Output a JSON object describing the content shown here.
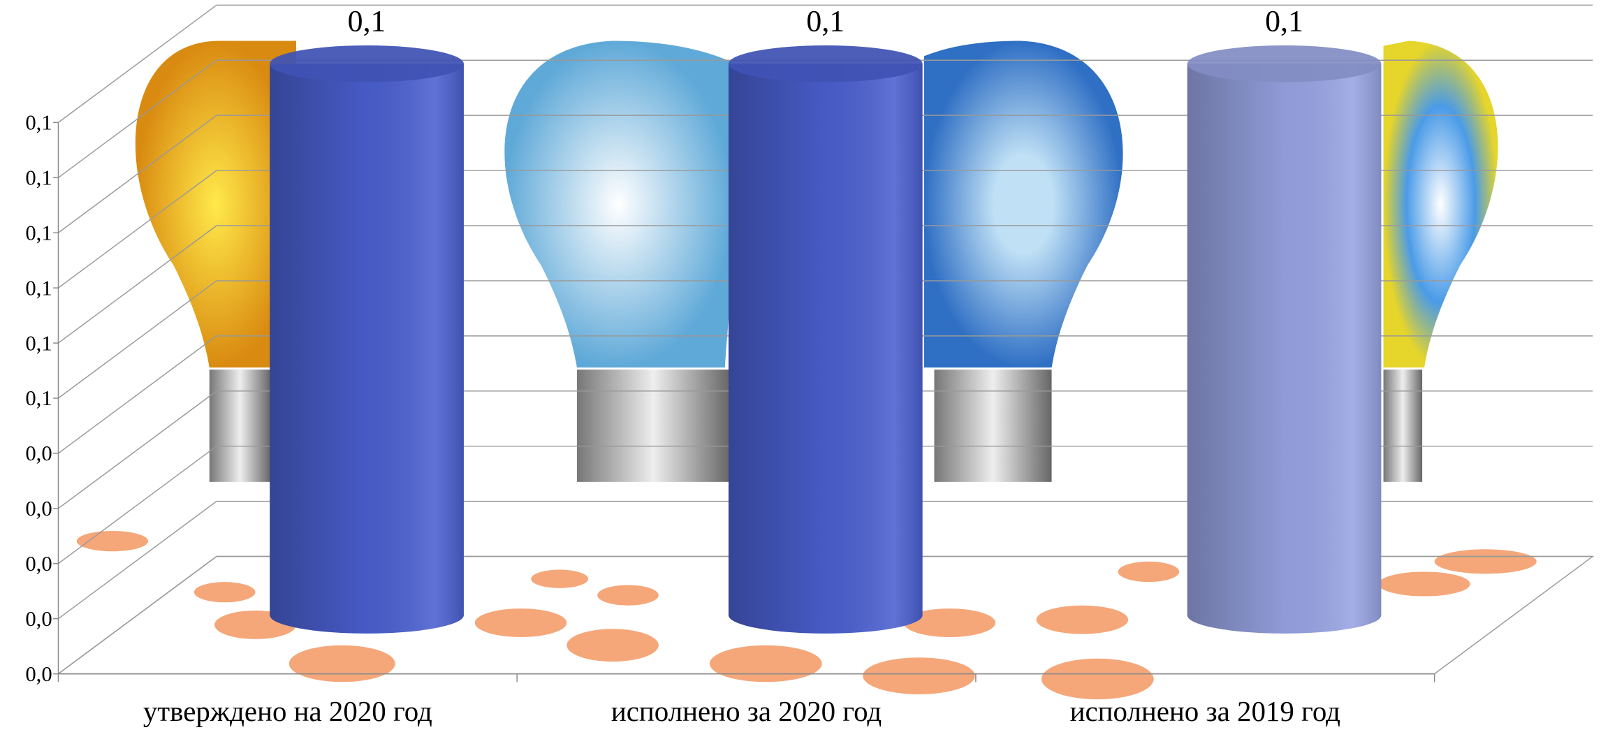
{
  "chart_data": {
    "type": "bar3d",
    "categories": [
      "утверждено на 2020 год",
      "исполнено за 2020 год",
      "исполнено за 2019 год"
    ],
    "values": [
      0.1,
      0.1,
      0.1
    ],
    "value_labels": [
      "0,1",
      "0,1",
      "0,1"
    ],
    "colors": [
      "#4a5fcf",
      "#4a5fcf",
      "#97a3e2"
    ],
    "ylim": [
      0,
      0.1
    ],
    "yticks": [
      {
        "value": 0,
        "label": "0,0"
      },
      {
        "value": 0.01,
        "label": "0,0"
      },
      {
        "value": 0.02,
        "label": "0,0"
      },
      {
        "value": 0.03,
        "label": "0,0"
      },
      {
        "value": 0.04,
        "label": "0,0"
      },
      {
        "value": 0.05,
        "label": "0,1"
      },
      {
        "value": 0.06,
        "label": "0,1"
      },
      {
        "value": 0.07,
        "label": "0,1"
      },
      {
        "value": 0.08,
        "label": "0,1"
      },
      {
        "value": 0.09,
        "label": "0,1"
      },
      {
        "value": 0.1,
        "label": "0,1"
      }
    ],
    "grid": true
  }
}
